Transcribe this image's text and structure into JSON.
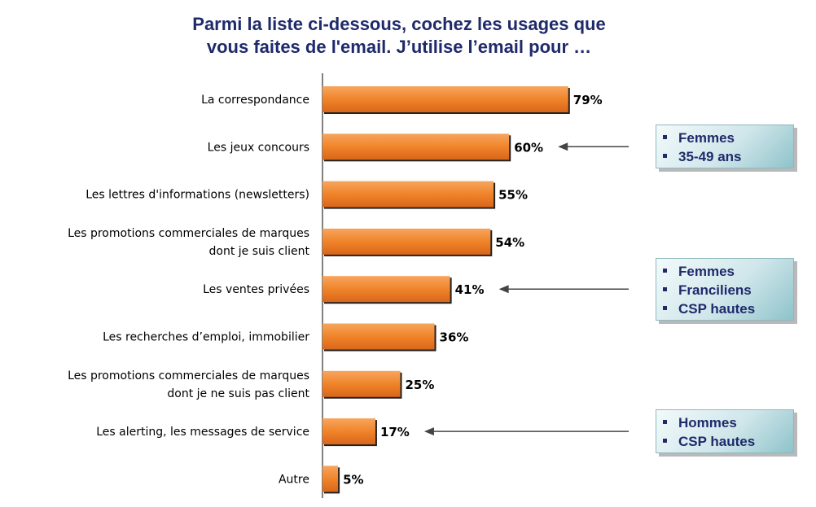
{
  "title_lines": [
    "Parmi la liste ci-dessous, cochez les usages que",
    "vous faites de l'email. J’utilise l’email pour …"
  ],
  "chart_data": {
    "type": "bar",
    "orientation": "horizontal",
    "categories": [
      [
        "La correspondance"
      ],
      [
        "Les jeux concours"
      ],
      [
        "Les lettres d'informations (newsletters)"
      ],
      [
        "Les promotions commerciales de marques",
        "dont je suis client"
      ],
      [
        "Les ventes privées"
      ],
      [
        "Les recherches d’emploi, immobilier"
      ],
      [
        "Les promotions commerciales de marques",
        "dont je ne suis pas client"
      ],
      [
        "Les alerting, les messages de service"
      ],
      [
        "Autre"
      ]
    ],
    "values": [
      79,
      60,
      55,
      54,
      41,
      36,
      25,
      17,
      5
    ],
    "value_labels": [
      "79%",
      "60%",
      "55%",
      "54%",
      "41%",
      "36%",
      "25%",
      "17%",
      "5%"
    ],
    "xlim": [
      0,
      100
    ],
    "bar_color": "#f0842a",
    "grid": false,
    "legend": "none"
  },
  "callouts": [
    {
      "target_index": 1,
      "items": [
        "Femmes",
        "35-49 ans"
      ]
    },
    {
      "target_index": 4,
      "items": [
        "Femmes",
        "Franciliens",
        "CSP hautes"
      ]
    },
    {
      "target_index": 7,
      "items": [
        "Hommes",
        "CSP hautes"
      ]
    }
  ],
  "colors": {
    "title": "#1f2a6b",
    "bar": "#f0842a",
    "callout_text": "#1f2a6b"
  }
}
